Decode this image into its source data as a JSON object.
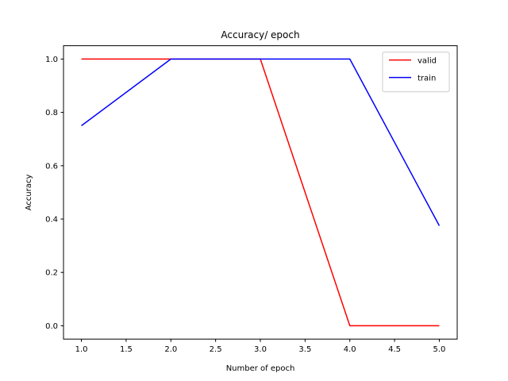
{
  "chart_data": {
    "type": "line",
    "title": "Accuracy/ epoch",
    "xlabel": "Number of epoch",
    "ylabel": "Accuracy",
    "xlim": [
      0.8,
      5.2
    ],
    "ylim": [
      -0.05,
      1.05
    ],
    "xticks": [
      "1.0",
      "1.5",
      "2.0",
      "2.5",
      "3.0",
      "3.5",
      "4.0",
      "4.5",
      "5.0"
    ],
    "yticks": [
      "0.0",
      "0.2",
      "0.4",
      "0.6",
      "0.8",
      "1.0"
    ],
    "grid": false,
    "legend_position": "top-right",
    "x": [
      1,
      2,
      3,
      4,
      5
    ],
    "series": [
      {
        "name": "valid",
        "color": "#ff0000",
        "values": [
          1.0,
          1.0,
          1.0,
          0.0,
          0.0
        ]
      },
      {
        "name": "train",
        "color": "#0000ff",
        "values": [
          0.75,
          1.0,
          1.0,
          1.0,
          0.375
        ]
      }
    ]
  }
}
